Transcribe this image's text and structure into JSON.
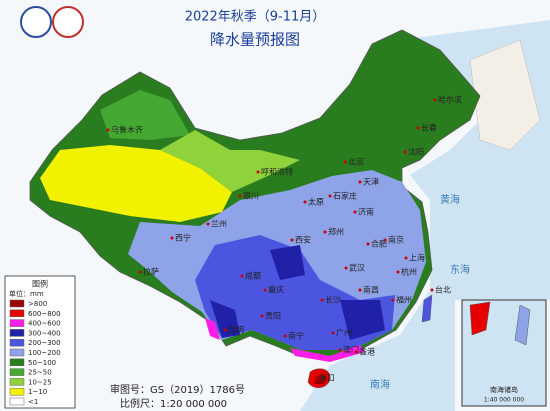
{
  "header": {
    "title": "2022年秋季（9-11月）",
    "subtitle": "降水量预报图"
  },
  "legend": {
    "title": "图例",
    "unit": "单位：mm",
    "items": [
      {
        "label": ">800",
        "color": "#9b0000"
      },
      {
        "label": "600~800",
        "color": "#e60000"
      },
      {
        "label": "400~600",
        "color": "#ff1ee6"
      },
      {
        "label": "300~400",
        "color": "#2020a8"
      },
      {
        "label": "200~300",
        "color": "#4b55e0"
      },
      {
        "label": "100~200",
        "color": "#8fa3e8"
      },
      {
        "label": "50~100",
        "color": "#2a7d1e"
      },
      {
        "label": "25~50",
        "color": "#44a832"
      },
      {
        "label": "10~25",
        "color": "#8fd23c"
      },
      {
        "label": "1~10",
        "color": "#f2f200"
      },
      {
        "label": "<1",
        "color": "#ffffff"
      }
    ]
  },
  "footer": {
    "map_number": "审图号：GS（2019）1786号",
    "scale": "比例尺：1:20 000 000"
  },
  "inset": {
    "title": "南海诸岛",
    "scale": "1:40 000 000"
  },
  "cities": [
    "乌鲁木齐",
    "拉萨",
    "西宁",
    "兰州",
    "银川",
    "呼和浩特",
    "北京",
    "天津",
    "石家庄",
    "太原",
    "济南",
    "郑州",
    "西安",
    "成都",
    "重庆",
    "贵阳",
    "昆明",
    "南宁",
    "广州",
    "长沙",
    "武汉",
    "合肥",
    "南京",
    "上海",
    "杭州",
    "南昌",
    "福州",
    "台北",
    "香港",
    "澳门",
    "海口",
    "沈阳",
    "长春",
    "哈尔滨"
  ],
  "seas": [
    "黄海",
    "东海",
    "南海"
  ]
}
